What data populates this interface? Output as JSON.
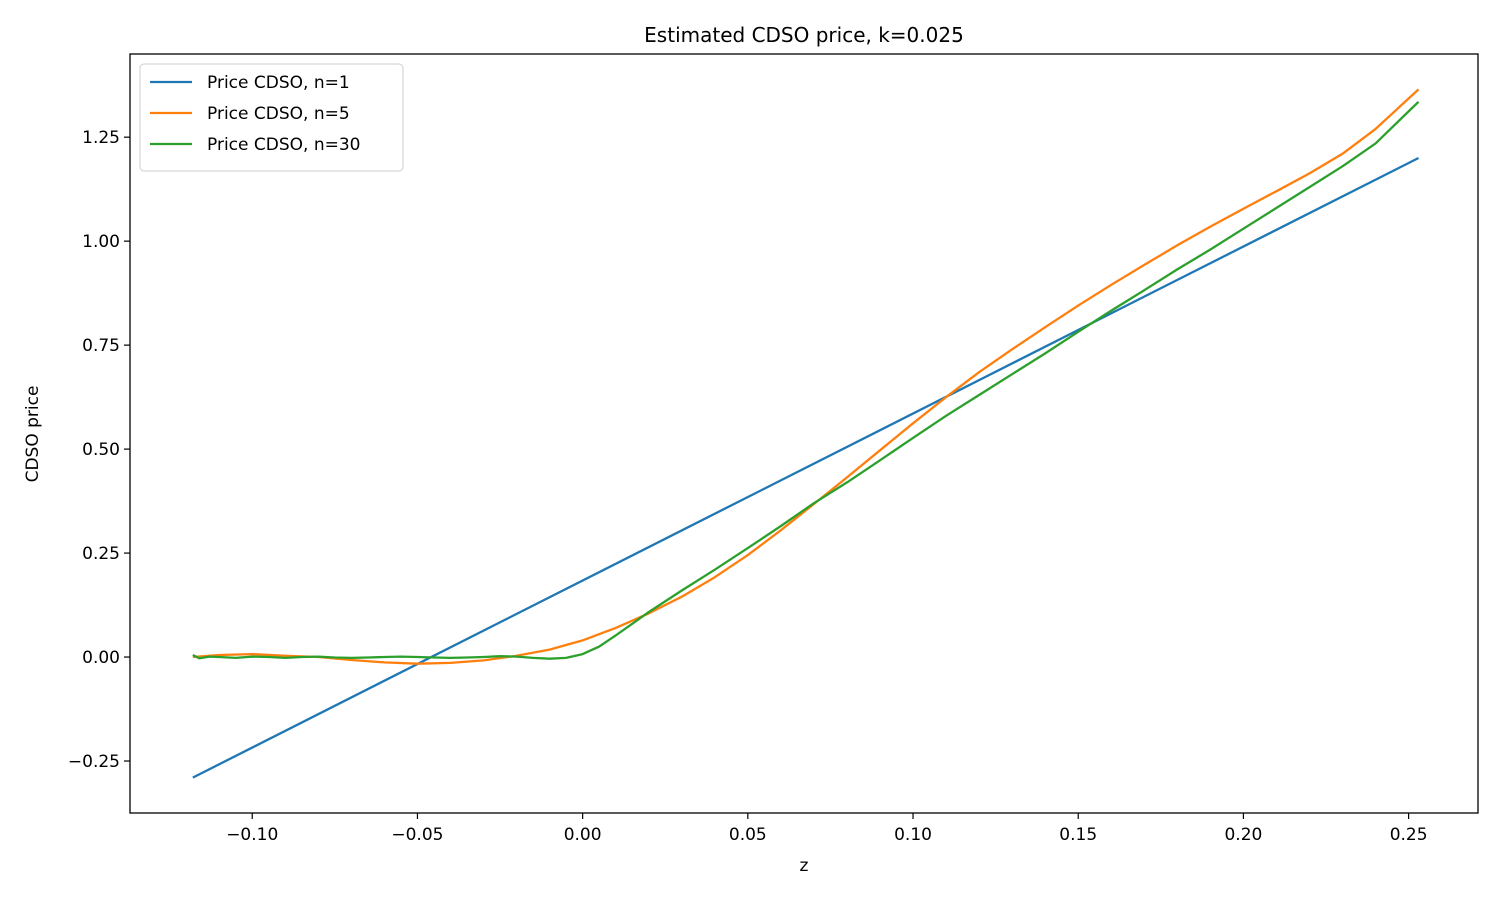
{
  "chart_data": {
    "type": "line",
    "title": "Estimated CDSO price, k=0.025",
    "xlabel": "z",
    "ylabel": "CDSO price",
    "xlim": [
      -0.137,
      0.271
    ],
    "ylim": [
      -0.375,
      1.45
    ],
    "xticks": [
      -0.1,
      -0.05,
      0.0,
      0.05,
      0.1,
      0.15,
      0.2,
      0.25
    ],
    "xtick_labels": [
      "−0.10",
      "−0.05",
      "0.00",
      "0.05",
      "0.10",
      "0.15",
      "0.20",
      "0.25"
    ],
    "yticks": [
      -0.25,
      0.0,
      0.25,
      0.5,
      0.75,
      1.0,
      1.25
    ],
    "ytick_labels": [
      "−0.25",
      "0.00",
      "0.25",
      "0.50",
      "0.75",
      "1.00",
      "1.25"
    ],
    "grid": false,
    "legend_position": "top-left",
    "series": [
      {
        "name": "Price CDSO, n=1",
        "color": "#1f77b4",
        "points": [
          [
            -0.118,
            -0.29
          ],
          [
            0.253,
            1.2
          ]
        ]
      },
      {
        "name": "Price CDSO, n=5",
        "color": "#ff7f0e",
        "points": [
          [
            -0.118,
            0.0
          ],
          [
            -0.11,
            0.005
          ],
          [
            -0.1,
            0.007
          ],
          [
            -0.09,
            0.003
          ],
          [
            -0.08,
            0.0
          ],
          [
            -0.07,
            -0.007
          ],
          [
            -0.06,
            -0.013
          ],
          [
            -0.05,
            -0.016
          ],
          [
            -0.04,
            -0.014
          ],
          [
            -0.03,
            -0.008
          ],
          [
            -0.02,
            0.003
          ],
          [
            -0.01,
            0.018
          ],
          [
            0.0,
            0.04
          ],
          [
            0.01,
            0.07
          ],
          [
            0.02,
            0.105
          ],
          [
            0.03,
            0.145
          ],
          [
            0.04,
            0.192
          ],
          [
            0.05,
            0.245
          ],
          [
            0.06,
            0.305
          ],
          [
            0.07,
            0.368
          ],
          [
            0.08,
            0.432
          ],
          [
            0.09,
            0.497
          ],
          [
            0.1,
            0.562
          ],
          [
            0.11,
            0.625
          ],
          [
            0.12,
            0.685
          ],
          [
            0.13,
            0.74
          ],
          [
            0.14,
            0.793
          ],
          [
            0.15,
            0.845
          ],
          [
            0.16,
            0.895
          ],
          [
            0.17,
            0.943
          ],
          [
            0.18,
            0.99
          ],
          [
            0.19,
            1.035
          ],
          [
            0.2,
            1.078
          ],
          [
            0.21,
            1.12
          ],
          [
            0.22,
            1.163
          ],
          [
            0.23,
            1.21
          ],
          [
            0.24,
            1.27
          ],
          [
            0.253,
            1.365
          ]
        ]
      },
      {
        "name": "Price CDSO, n=30",
        "color": "#2ca02c",
        "points": [
          [
            -0.118,
            0.005
          ],
          [
            -0.116,
            -0.003
          ],
          [
            -0.113,
            0.001
          ],
          [
            -0.11,
            0.0
          ],
          [
            -0.105,
            -0.002
          ],
          [
            -0.1,
            0.001
          ],
          [
            -0.095,
            0.0
          ],
          [
            -0.09,
            -0.002
          ],
          [
            -0.085,
            0.0
          ],
          [
            -0.08,
            0.001
          ],
          [
            -0.075,
            -0.001
          ],
          [
            -0.07,
            -0.002
          ],
          [
            -0.065,
            -0.001
          ],
          [
            -0.06,
            0.0
          ],
          [
            -0.055,
            0.001
          ],
          [
            -0.05,
            0.0
          ],
          [
            -0.045,
            -0.001
          ],
          [
            -0.04,
            -0.002
          ],
          [
            -0.035,
            -0.001
          ],
          [
            -0.03,
            0.0
          ],
          [
            -0.025,
            0.002
          ],
          [
            -0.02,
            0.001
          ],
          [
            -0.015,
            -0.002
          ],
          [
            -0.01,
            -0.004
          ],
          [
            -0.005,
            -0.002
          ],
          [
            0.0,
            0.007
          ],
          [
            0.005,
            0.025
          ],
          [
            0.01,
            0.052
          ],
          [
            0.015,
            0.08
          ],
          [
            0.02,
            0.108
          ],
          [
            0.03,
            0.16
          ],
          [
            0.04,
            0.21
          ],
          [
            0.05,
            0.262
          ],
          [
            0.06,
            0.315
          ],
          [
            0.07,
            0.37
          ],
          [
            0.08,
            0.42
          ],
          [
            0.09,
            0.473
          ],
          [
            0.1,
            0.527
          ],
          [
            0.11,
            0.58
          ],
          [
            0.12,
            0.63
          ],
          [
            0.13,
            0.68
          ],
          [
            0.14,
            0.73
          ],
          [
            0.15,
            0.782
          ],
          [
            0.16,
            0.833
          ],
          [
            0.17,
            0.882
          ],
          [
            0.18,
            0.932
          ],
          [
            0.19,
            0.98
          ],
          [
            0.2,
            1.03
          ],
          [
            0.21,
            1.08
          ],
          [
            0.22,
            1.13
          ],
          [
            0.23,
            1.18
          ],
          [
            0.24,
            1.235
          ],
          [
            0.253,
            1.335
          ]
        ]
      }
    ]
  }
}
